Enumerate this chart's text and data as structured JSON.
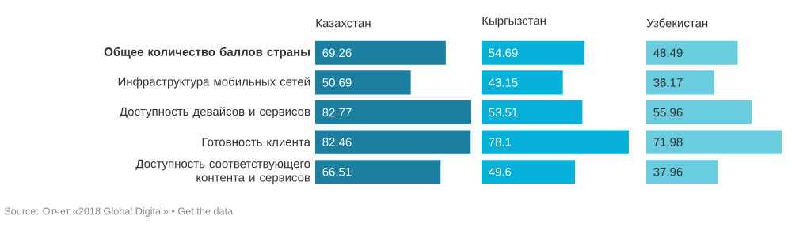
{
  "chart_data": [
    {
      "type": "bar",
      "orientation": "horizontal",
      "title": "Казахстан",
      "categories": [
        "**Общее количество баллов страны**",
        "Инфраструктура мобильных сетей",
        "Доступность девайсов и сервисов",
        "Готовность клиента",
        "Доступность соответствующего контента и сервисов"
      ],
      "values": [
        69.26,
        50.69,
        82.77,
        82.46,
        66.51
      ],
      "color": "#1a7fa0",
      "data_labels": true,
      "annotations": [
        "Source: Отчет «2018 Global Digital» • Get the data"
      ]
    },
    {
      "type": "bar",
      "orientation": "horizontal",
      "title": "Кыргызстан",
      "categories": [
        null,
        null,
        null,
        null,
        null
      ],
      "values": [
        54.69,
        43.15,
        53.51,
        78.1,
        49.6
      ],
      "color": "#06b0d8",
      "data_labels": true
    },
    {
      "type": "bar",
      "orientation": "horizontal",
      "title": "Узбекистан",
      "categories": [
        null,
        null,
        null,
        null,
        null
      ],
      "values": [
        48.49,
        36.17,
        55.96,
        71.98,
        37.96
      ],
      "color": "#6accdf",
      "data_labels": true
    }
  ]
}
